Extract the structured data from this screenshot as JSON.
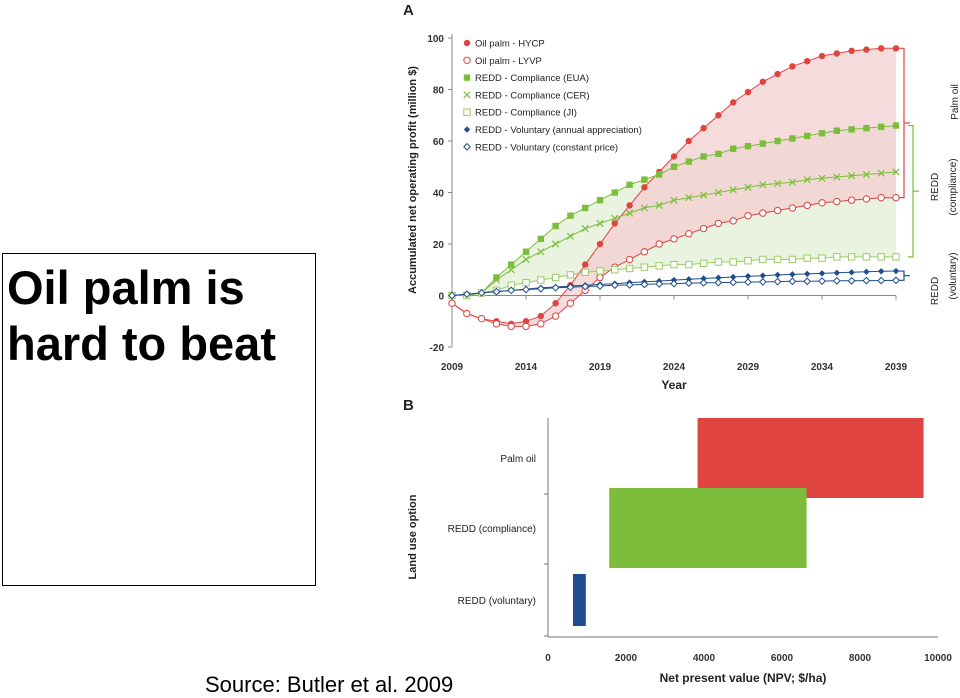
{
  "slide": {
    "title": "Oil palm is hard to beat",
    "source": "Source: Butler et al. 2009"
  },
  "colors": {
    "red": "#e0443f",
    "green": "#7cbd3c",
    "lightgreen": "#99cc66",
    "blue": "#1f4e8c",
    "red_fill": "#f3cfd0",
    "green_fill": "#e3efd6"
  },
  "chart_data": [
    {
      "panel": "A",
      "type": "line",
      "xlabel": "Year",
      "ylabel": "Accumulated net operating profit (million $)",
      "xlim": [
        2009,
        2039
      ],
      "ylim": [
        -20,
        100
      ],
      "xticks": [
        "2009",
        "2014",
        "2019",
        "2024",
        "2029",
        "2034",
        "2039"
      ],
      "yticks": [
        "-20",
        "0",
        "20",
        "40",
        "60",
        "80",
        "100"
      ],
      "legend": "top-left",
      "series": [
        {
          "name": "Oil palm - HYCP",
          "color": "#e0443f",
          "marker": "filled-circle",
          "x": [
            2009,
            2010,
            2011,
            2012,
            2013,
            2014,
            2015,
            2016,
            2017,
            2018,
            2019,
            2020,
            2021,
            2022,
            2023,
            2024,
            2025,
            2026,
            2027,
            2028,
            2029,
            2030,
            2031,
            2032,
            2033,
            2034,
            2035,
            2036,
            2037,
            2038,
            2039
          ],
          "values": [
            -3,
            -7,
            -9,
            -10,
            -11,
            -10,
            -8,
            -3,
            4,
            12,
            20,
            28,
            35,
            42,
            48,
            54,
            60,
            65,
            70,
            75,
            79,
            83,
            86,
            89,
            91,
            93,
            94,
            95,
            95.5,
            96,
            96
          ]
        },
        {
          "name": "Oil palm - LYVP",
          "color": "#e0443f",
          "marker": "open-circle",
          "x": [
            2009,
            2010,
            2011,
            2012,
            2013,
            2014,
            2015,
            2016,
            2017,
            2018,
            2019,
            2020,
            2021,
            2022,
            2023,
            2024,
            2025,
            2026,
            2027,
            2028,
            2029,
            2030,
            2031,
            2032,
            2033,
            2034,
            2035,
            2036,
            2037,
            2038,
            2039
          ],
          "values": [
            -3,
            -7,
            -9,
            -11,
            -12,
            -12,
            -11,
            -8,
            -3,
            2,
            7,
            11,
            14,
            17,
            20,
            22,
            24,
            26,
            28,
            29,
            31,
            32,
            33,
            34,
            35,
            36,
            36.5,
            37,
            37.5,
            38,
            38
          ]
        },
        {
          "name": "REDD - Compliance (EUA)",
          "color": "#7cbd3c",
          "marker": "filled-square",
          "x": [
            2009,
            2010,
            2011,
            2012,
            2013,
            2014,
            2015,
            2016,
            2017,
            2018,
            2019,
            2020,
            2021,
            2022,
            2023,
            2024,
            2025,
            2026,
            2027,
            2028,
            2029,
            2030,
            2031,
            2032,
            2033,
            2034,
            2035,
            2036,
            2037,
            2038,
            2039
          ],
          "values": [
            0,
            0,
            1,
            7,
            12,
            17,
            22,
            27,
            31,
            34,
            37,
            40,
            43,
            45,
            47,
            50,
            52,
            54,
            55,
            57,
            58,
            59,
            60,
            61,
            62,
            63,
            64,
            64.5,
            65,
            65.5,
            66
          ]
        },
        {
          "name": "REDD - Compliance (CER)",
          "color": "#7cbd3c",
          "marker": "x",
          "x": [
            2009,
            2010,
            2011,
            2012,
            2013,
            2014,
            2015,
            2016,
            2017,
            2018,
            2019,
            2020,
            2021,
            2022,
            2023,
            2024,
            2025,
            2026,
            2027,
            2028,
            2029,
            2030,
            2031,
            2032,
            2033,
            2034,
            2035,
            2036,
            2037,
            2038,
            2039
          ],
          "values": [
            0,
            0,
            1,
            6,
            10,
            14,
            17,
            20,
            23,
            26,
            28,
            30,
            32,
            34,
            35,
            37,
            38,
            39,
            40,
            41,
            42,
            43,
            43.5,
            44,
            45,
            45.5,
            46,
            46.5,
            47,
            47.5,
            48
          ]
        },
        {
          "name": "REDD - Compliance (JI)",
          "color": "#99cc66",
          "marker": "open-square",
          "x": [
            2009,
            2010,
            2011,
            2012,
            2013,
            2014,
            2015,
            2016,
            2017,
            2018,
            2019,
            2020,
            2021,
            2022,
            2023,
            2024,
            2025,
            2026,
            2027,
            2028,
            2029,
            2030,
            2031,
            2032,
            2033,
            2034,
            2035,
            2036,
            2037,
            2038,
            2039
          ],
          "values": [
            0,
            0,
            1,
            2,
            4,
            5,
            6,
            7,
            8,
            9,
            9.5,
            10,
            10.5,
            11,
            11.5,
            12,
            12,
            12.5,
            13,
            13,
            13.5,
            14,
            14,
            14,
            14.5,
            14.5,
            15,
            15,
            15,
            15,
            15
          ]
        },
        {
          "name": "REDD - Voluntary (annual appreciation)",
          "color": "#1f4e8c",
          "marker": "filled-diamond",
          "x": [
            2009,
            2010,
            2011,
            2012,
            2013,
            2014,
            2015,
            2016,
            2017,
            2018,
            2019,
            2020,
            2021,
            2022,
            2023,
            2024,
            2025,
            2026,
            2027,
            2028,
            2029,
            2030,
            2031,
            2032,
            2033,
            2034,
            2035,
            2036,
            2037,
            2038,
            2039
          ],
          "values": [
            0,
            0.5,
            1,
            1.5,
            2,
            2.5,
            3,
            3.3,
            3.7,
            4,
            4.3,
            4.6,
            5,
            5.3,
            5.6,
            6,
            6.3,
            6.6,
            6.9,
            7.2,
            7.5,
            7.7,
            8,
            8.2,
            8.4,
            8.6,
            8.8,
            9,
            9.2,
            9.4,
            9.5
          ]
        },
        {
          "name": "REDD - Voluntary (constant price)",
          "color": "#1f4e8c",
          "marker": "open-diamond",
          "x": [
            2009,
            2010,
            2011,
            2012,
            2013,
            2014,
            2015,
            2016,
            2017,
            2018,
            2019,
            2020,
            2021,
            2022,
            2023,
            2024,
            2025,
            2026,
            2027,
            2028,
            2029,
            2030,
            2031,
            2032,
            2033,
            2034,
            2035,
            2036,
            2037,
            2038,
            2039
          ],
          "values": [
            0,
            0.5,
            1,
            1.5,
            2,
            2.3,
            2.6,
            3,
            3.2,
            3.5,
            3.7,
            4,
            4.1,
            4.3,
            4.5,
            4.6,
            4.8,
            4.9,
            5,
            5.1,
            5.2,
            5.3,
            5.4,
            5.5,
            5.5,
            5.6,
            5.7,
            5.7,
            5.8,
            5.8,
            5.9
          ]
        }
      ],
      "brackets": [
        {
          "label": "Palm oil",
          "range": [
            38,
            96
          ],
          "color": "#e0443f"
        },
        {
          "label": "REDD (compliance)",
          "range": [
            15,
            66
          ],
          "color": "#7cbd3c"
        },
        {
          "label": "REDD (voluntary)",
          "range": [
            5.9,
            9.5
          ],
          "color": "#1f4e8c"
        }
      ]
    },
    {
      "panel": "B",
      "type": "bar",
      "orientation": "horizontal-range",
      "xlabel": "Net present value (NPV; $/ha)",
      "ylabel": "Land use option",
      "xlim": [
        0,
        10000
      ],
      "xticks": [
        "0",
        "2000",
        "4000",
        "6000",
        "8000",
        "10000"
      ],
      "categories": [
        "Palm oil",
        "REDD (compliance)",
        "REDD (voluntary)"
      ],
      "ranges": [
        [
          3835,
          9630
        ],
        [
          1570,
          6630
        ],
        [
          640,
          970
        ]
      ],
      "colors": [
        "#e0443f",
        "#7cbd3c",
        "#1f4e8c"
      ]
    }
  ]
}
